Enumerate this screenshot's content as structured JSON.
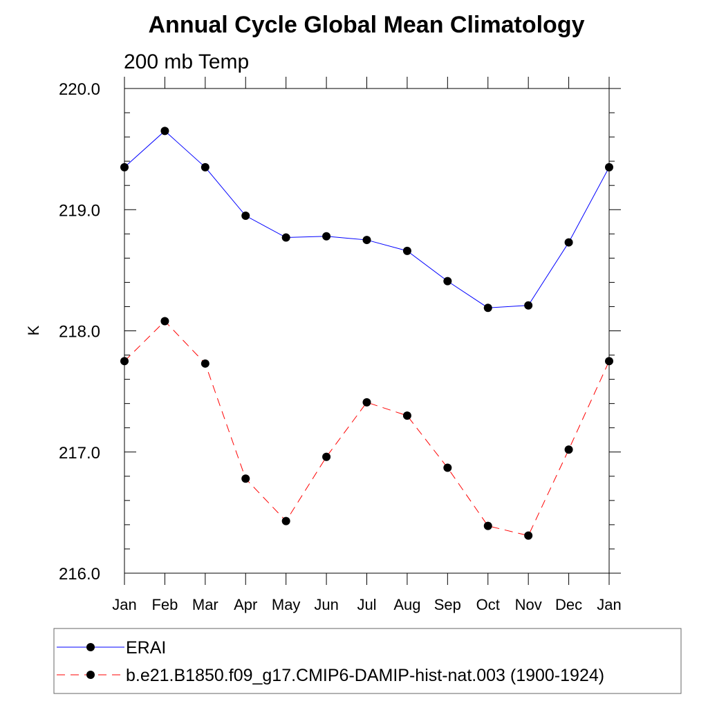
{
  "chart_data": {
    "type": "line",
    "title": "Annual Cycle Global Mean Climatology",
    "subtitle": "200 mb Temp",
    "xlabel": "",
    "ylabel": "K",
    "categories": [
      "Jan",
      "Feb",
      "Mar",
      "Apr",
      "May",
      "Jun",
      "Jul",
      "Aug",
      "Sep",
      "Oct",
      "Nov",
      "Dec",
      "Jan"
    ],
    "ylim": [
      216.0,
      220.0
    ],
    "yticks": [
      "216.0",
      "217.0",
      "218.0",
      "219.0",
      "220.0"
    ],
    "y_minor_step": 0.2,
    "grid": false,
    "legend_position": "bottom",
    "series": [
      {
        "name": "ERAI",
        "color": "#0000ff",
        "dash": "solid",
        "values": [
          219.35,
          219.65,
          219.35,
          218.95,
          218.77,
          218.78,
          218.75,
          218.66,
          218.41,
          218.19,
          218.21,
          218.73,
          219.35
        ]
      },
      {
        "name": "b.e21.B1850.f09_g17.CMIP6-DAMIP-hist-nat.003 (1900-1924)",
        "color": "#ff0000",
        "dash": "dashed",
        "values": [
          217.75,
          218.08,
          217.73,
          216.78,
          216.43,
          216.96,
          217.41,
          217.3,
          216.87,
          216.39,
          216.31,
          217.02,
          217.75
        ]
      }
    ]
  }
}
